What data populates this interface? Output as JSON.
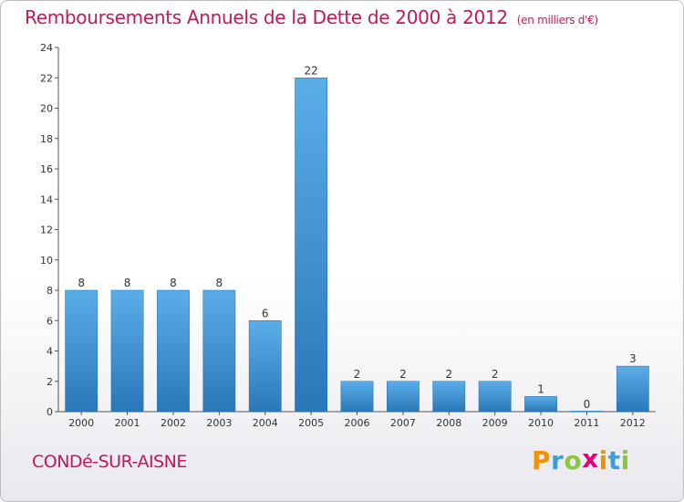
{
  "chart_data": {
    "type": "bar",
    "title": "Remboursements Annuels de la Dette de 2000 à 2012",
    "unit_note": "(en milliers d'€)",
    "categories": [
      "2000",
      "2001",
      "2002",
      "2003",
      "2004",
      "2005",
      "2006",
      "2007",
      "2008",
      "2009",
      "2010",
      "2011",
      "2012"
    ],
    "values": [
      8,
      8,
      8,
      8,
      6,
      22,
      2,
      2,
      2,
      2,
      1,
      0,
      3
    ],
    "data_labels": [
      "8",
      "8",
      "8",
      "8",
      "6",
      "22",
      "2",
      "2",
      "2",
      "2",
      "1",
      "0",
      "3"
    ],
    "ylim": [
      0,
      24
    ],
    "yticks": [
      "0",
      "2",
      "4",
      "6",
      "8",
      "10",
      "12",
      "14",
      "16",
      "18",
      "20",
      "22",
      "24"
    ],
    "xlabel": "",
    "ylabel": "",
    "grid": false,
    "bar_color": "#3a8fd6"
  },
  "footer": {
    "commune": "CONDé-SUR-AISNE",
    "logo_text": "Proxiti",
    "logo_letters": [
      {
        "ch": "P",
        "color": "#f39200"
      },
      {
        "ch": "r",
        "color": "#3aa0d8"
      },
      {
        "ch": "o",
        "color": "#8cc63f"
      },
      {
        "ch": "x",
        "color": "#e4007c"
      },
      {
        "ch": "i",
        "color": "#f39200"
      },
      {
        "ch": "t",
        "color": "#3aa0d8"
      },
      {
        "ch": "i",
        "color": "#8cc63f"
      }
    ]
  }
}
